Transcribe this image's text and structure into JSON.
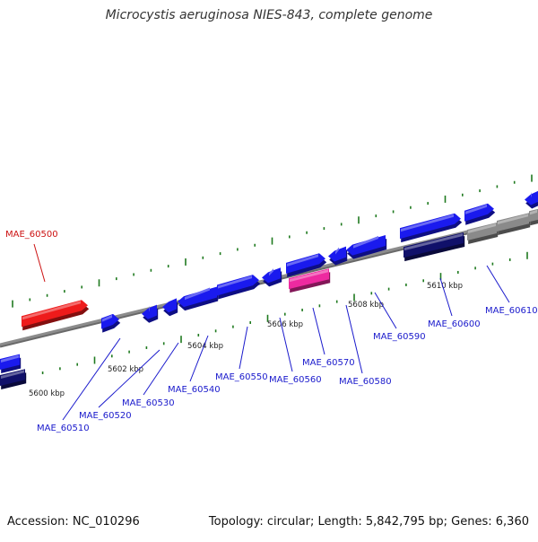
{
  "title": "Microcystis aeruginosa NIES-843, complete genome",
  "footer": {
    "accession": "Accession: NC_010296",
    "summary": "Topology: circular; Length: 5,842,795 bp; Genes: 6,360"
  },
  "colors": {
    "gene_forward": "#1a1aee",
    "gene_highlight_red": "#ee1b1b",
    "gene_highlight_pink": "#ee2aa0",
    "gene_reverse_dark": "#10106a",
    "gene_reverse_gray": "#8a8a8a",
    "backbone": "#8c8c8c",
    "ticks": "#1f7a1f",
    "label_blue": "#1a1acc",
    "label_red": "#cc1111"
  },
  "scale_labels": [
    "5600 kbp",
    "5602 kbp",
    "5604 kbp",
    "5606 kbp",
    "5608 kbp",
    "5610 kbp"
  ],
  "gene_labels": [
    {
      "text": "MAE_60500",
      "color": "label_red"
    },
    {
      "text": "MAE_60510",
      "color": "label_blue"
    },
    {
      "text": "MAE_60520",
      "color": "label_blue"
    },
    {
      "text": "MAE_60530",
      "color": "label_blue"
    },
    {
      "text": "MAE_60540",
      "color": "label_blue"
    },
    {
      "text": "MAE_60550",
      "color": "label_blue"
    },
    {
      "text": "MAE_60560",
      "color": "label_blue"
    },
    {
      "text": "MAE_60570",
      "color": "label_blue"
    },
    {
      "text": "MAE_60580",
      "color": "label_blue"
    },
    {
      "text": "MAE_60590",
      "color": "label_blue"
    },
    {
      "text": "MAE_60600",
      "color": "label_blue"
    },
    {
      "text": "MAE_60610",
      "color": "label_blue"
    }
  ]
}
